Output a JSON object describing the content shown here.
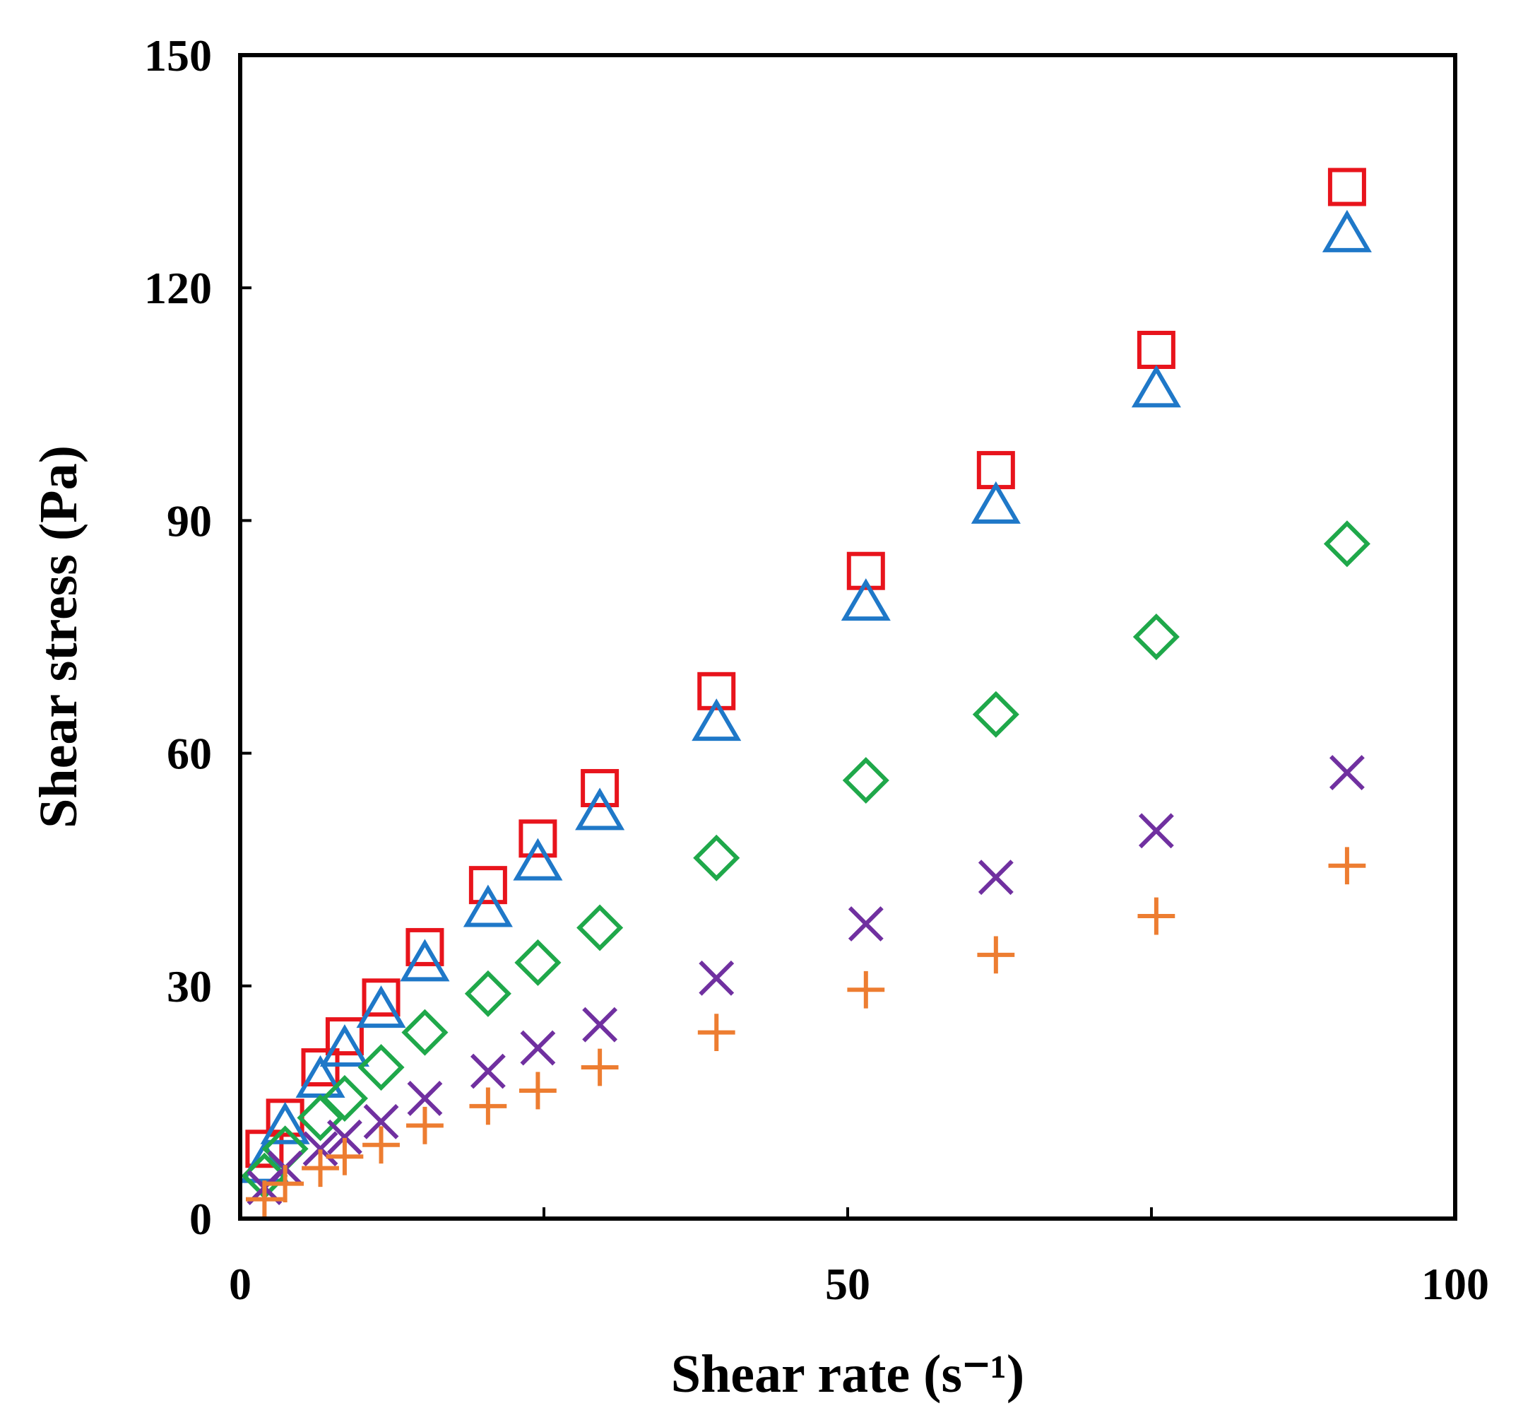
{
  "chart_data": {
    "type": "scatter",
    "title": "",
    "xlabel": "Shear rate (s⁻¹)",
    "ylabel": "Shear stress (Pa)",
    "xlim": [
      0,
      100
    ],
    "ylim": [
      0,
      150
    ],
    "xticks": [
      0,
      50,
      100
    ],
    "xtick_labels": [
      "0",
      "50",
      "100"
    ],
    "yticks": [
      0,
      30,
      60,
      90,
      120,
      150
    ],
    "ytick_labels": [
      "0",
      "30",
      "60",
      "90",
      "120",
      "150"
    ],
    "minor_xticks": [
      25,
      75
    ],
    "grid": false,
    "legend": "none",
    "series": [
      {
        "name": "square",
        "marker": "square",
        "color": "#e8141c",
        "x": [
          2.0,
          3.7,
          6.6,
          8.6,
          11.6,
          15.2,
          20.4,
          24.5,
          29.6,
          39.2,
          51.5,
          62.2,
          75.4,
          91.1
        ],
        "y": [
          9.0,
          13.0,
          19.5,
          23.5,
          28.5,
          35.0,
          43.0,
          49.0,
          55.5,
          68.0,
          83.5,
          96.5,
          112.0,
          133.0
        ]
      },
      {
        "name": "triangle",
        "marker": "triangle",
        "color": "#1f78c8",
        "x": [
          2.0,
          3.7,
          6.6,
          8.6,
          11.6,
          15.2,
          20.4,
          24.5,
          29.6,
          39.2,
          51.5,
          62.2,
          75.4,
          91.1
        ],
        "y": [
          7.0,
          12.0,
          18.0,
          22.0,
          27.0,
          33.0,
          40.0,
          46.0,
          52.5,
          64.0,
          79.5,
          92.0,
          107.0,
          127.0
        ]
      },
      {
        "name": "diamond",
        "marker": "diamond",
        "color": "#1fa84a",
        "x": [
          2.0,
          3.7,
          6.6,
          8.6,
          11.6,
          15.2,
          20.4,
          24.5,
          29.6,
          39.2,
          51.5,
          62.2,
          75.4,
          91.1
        ],
        "y": [
          5.5,
          9.0,
          13.0,
          15.5,
          19.5,
          24.0,
          29.0,
          33.0,
          37.5,
          46.5,
          56.5,
          65.0,
          75.0,
          87.0
        ]
      },
      {
        "name": "cross",
        "marker": "x",
        "color": "#7030a0",
        "x": [
          2.0,
          3.7,
          6.6,
          8.6,
          11.6,
          15.2,
          20.4,
          24.5,
          29.6,
          39.2,
          51.5,
          62.2,
          75.4,
          91.1
        ],
        "y": [
          4.0,
          6.5,
          9.0,
          10.5,
          12.5,
          15.5,
          19.0,
          22.0,
          25.0,
          31.0,
          38.0,
          44.0,
          50.0,
          57.5
        ]
      },
      {
        "name": "plus",
        "marker": "plus",
        "color": "#ed7d31",
        "x": [
          2.0,
          3.7,
          6.6,
          8.6,
          11.6,
          15.2,
          20.4,
          24.5,
          29.6,
          39.2,
          51.5,
          62.2,
          75.4,
          91.1
        ],
        "y": [
          2.5,
          4.5,
          6.5,
          8.0,
          9.5,
          12.0,
          14.5,
          16.5,
          19.5,
          24.0,
          29.5,
          34.0,
          39.0,
          45.5
        ]
      }
    ]
  }
}
